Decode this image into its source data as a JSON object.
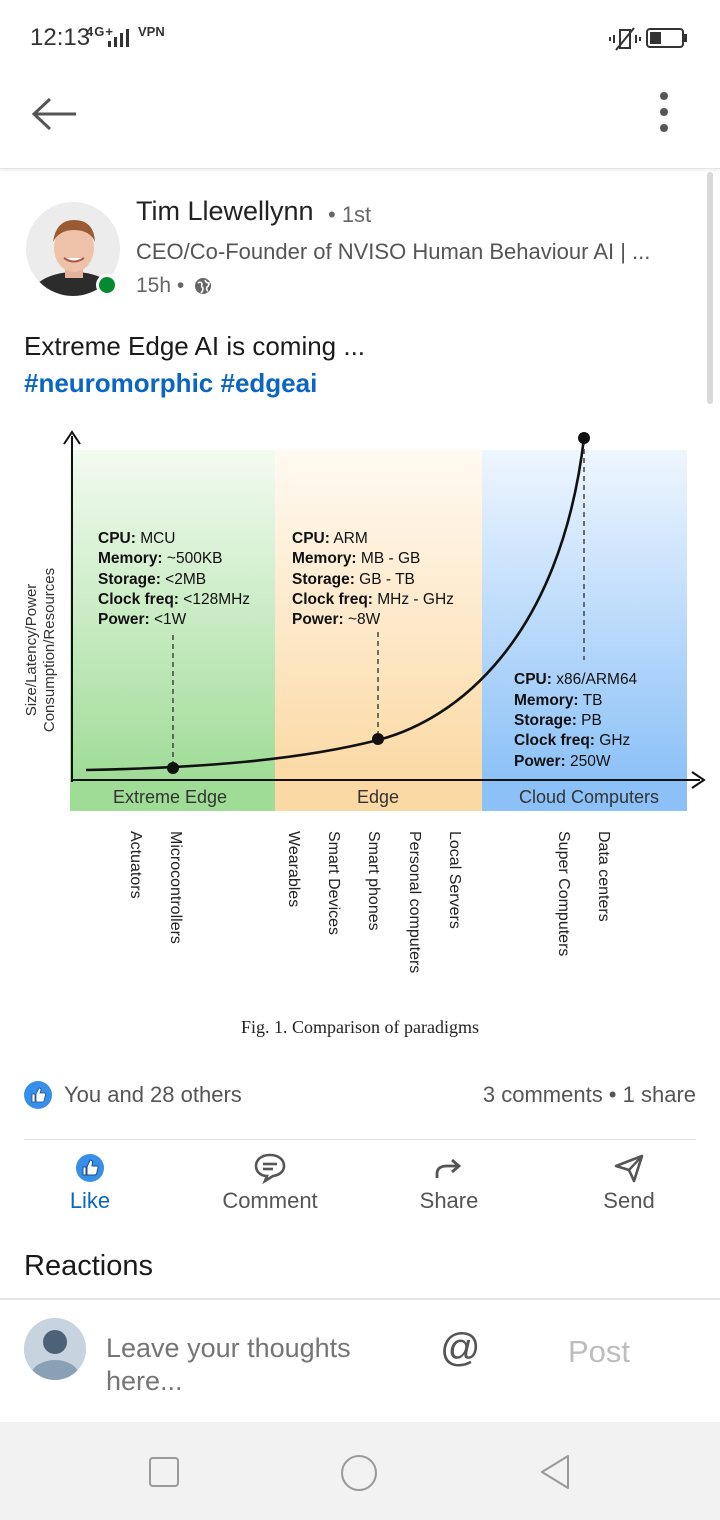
{
  "status_bar": {
    "time": "12:13",
    "network": "4G+",
    "vpn": "VPN",
    "battery_level": 0.35
  },
  "app_bar": {
    "back_icon": "arrow-left-icon",
    "more_icon": "kebab-menu-icon"
  },
  "post": {
    "author": {
      "name": "Tim Llewellynn",
      "degree": "• 1st",
      "headline": "CEO/Co-Founder of NVISO Human Behaviour AI | ...",
      "time": "15h •",
      "visibility_icon": "globe-icon",
      "online": true
    },
    "text": "Extreme Edge AI is coming ...",
    "hashtags": [
      "#neuromorphic",
      "#edgeai"
    ],
    "figure": {
      "caption": "Fig. 1.  Comparison of paradigms",
      "y_axis_label_1": "Size/Latency/Power",
      "y_axis_label_2": "Consumption/Resources",
      "zones": [
        {
          "name": "Extreme Edge",
          "color": "#9fdc96"
        },
        {
          "name": "Edge",
          "color": "#fbd9a4"
        },
        {
          "name": "Cloud Computers",
          "color": "#8cc1f7"
        }
      ],
      "specs": [
        {
          "cpu": "CPU:",
          "cpu_v": " MCU",
          "mem": "Memory:",
          "mem_v": " ~500KB",
          "sto": "Storage:",
          "sto_v": " <2MB",
          "clk": "Clock freq:",
          "clk_v": " <128MHz",
          "pow": "Power:",
          "pow_v": " <1W"
        },
        {
          "cpu": "CPU:",
          "cpu_v": " ARM",
          "mem": "Memory:",
          "mem_v": " MB - GB",
          "sto": "Storage:",
          "sto_v": " GB - TB",
          "clk": "Clock freq:",
          "clk_v": " MHz - GHz",
          "pow": "Power:",
          "pow_v": " ~8W"
        },
        {
          "cpu": "CPU:",
          "cpu_v": " x86/ARM64",
          "mem": "Memory:",
          "mem_v": " TB",
          "sto": "Storage:",
          "sto_v": " PB",
          "clk": "Clock freq:",
          "clk_v": " GHz",
          "pow": "Power:",
          "pow_v": " 250W"
        }
      ],
      "devices": [
        "Actuators",
        "Microcontrollers",
        "Wearables",
        "Smart Devices",
        "Smart phones",
        "Personal computers",
        "Local Servers",
        "Super Computers",
        "Data centers"
      ]
    },
    "social": {
      "likes_text": "You and 28 others",
      "comments_text": "3 comments • 1 share",
      "like_color": "#0a66c2"
    },
    "actions": [
      {
        "label": "Like",
        "icon": "thumbs-up-icon",
        "active": true
      },
      {
        "label": "Comment",
        "icon": "comment-icon",
        "active": false
      },
      {
        "label": "Share",
        "icon": "share-arrow-icon",
        "active": false
      },
      {
        "label": "Send",
        "icon": "send-icon",
        "active": false
      }
    ],
    "reactions_title": "Reactions"
  },
  "comment_box": {
    "placeholder": "Leave your thoughts here...",
    "mention_symbol": "@",
    "post_label": "Post"
  },
  "nav_bar": {
    "icons": [
      "recents-square-icon",
      "home-circle-icon",
      "back-triangle-icon"
    ]
  }
}
